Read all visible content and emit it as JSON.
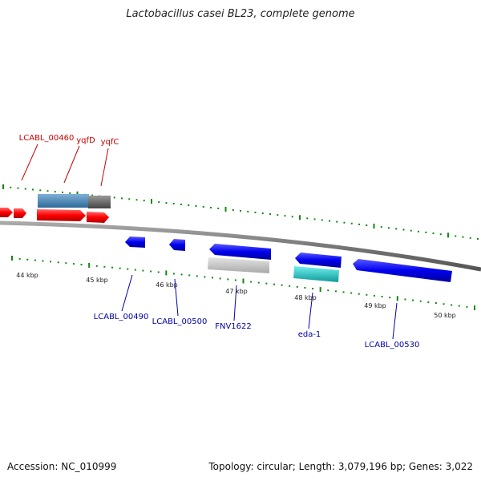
{
  "title": "Lactobacillus casei BL23, complete genome",
  "footer": {
    "accession": "Accession: NC_010999",
    "summary": "Topology: circular; Length: 3,079,196 bp; Genes: 3,022"
  },
  "colors": {
    "forward_gene": "#ff0000",
    "reverse_gene": "#0000ee",
    "forward_label": "#cc0000",
    "reverse_label": "#0000aa",
    "tick": "#118811",
    "backbone": "#888888",
    "steelblue_feature": "#4682b4",
    "gray_feature": "#666666",
    "lightgray_feature": "#c8c8c8",
    "cyan_feature": "#22cccc"
  },
  "scale_labels": [
    "44 kbp",
    "45 kbp",
    "46 kbp",
    "47 kbp",
    "48 kbp",
    "49 kbp",
    "50 kbp"
  ],
  "forward_labels": [
    "LCABL_00460",
    "yqfD",
    "yqfC"
  ],
  "reverse_labels": [
    "LCABL_00490",
    "LCABL_00500",
    "FNV1622",
    "eda-1",
    "LCABL_00530"
  ]
}
